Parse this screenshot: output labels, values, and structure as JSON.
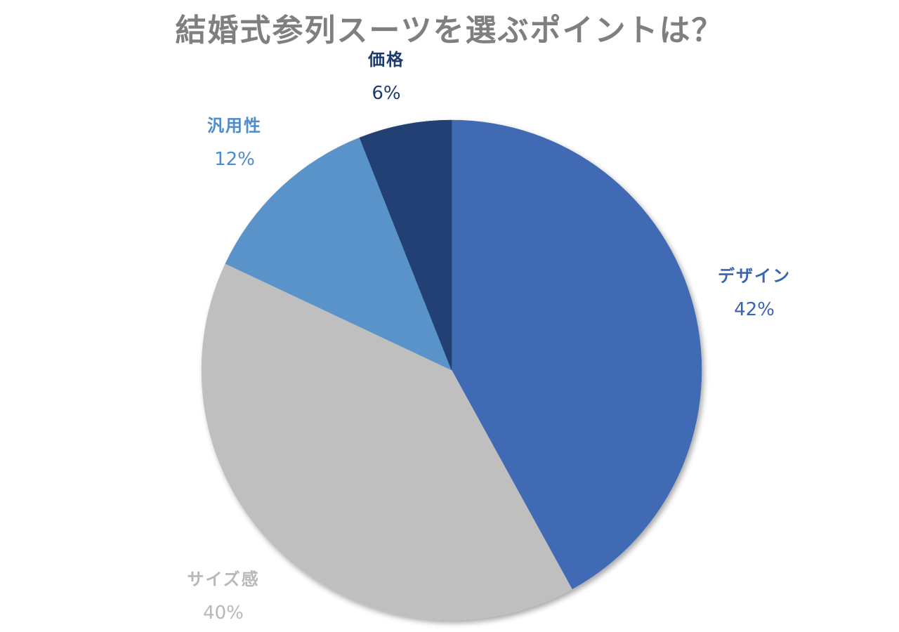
{
  "chart_data": {
    "type": "pie",
    "title": "結婚式参列スーツを選ぶポイントは？",
    "categories": [
      "デザイン",
      "サイズ感",
      "汎用性",
      "価格"
    ],
    "values": [
      42,
      40,
      12,
      6
    ],
    "labels": [
      "42%",
      "40%",
      "12%",
      "6%"
    ],
    "colors": [
      "#416bb3",
      "#bfbfbf",
      "#5a93c9",
      "#234173"
    ],
    "label_colors": [
      "#3b64b0",
      "#b8b8b8",
      "#4f8cc8",
      "#1f3b6e"
    ],
    "start_angle_deg": 0,
    "direction": "clockwise",
    "legend": "none",
    "data_labels": "outside, category name and percentage"
  },
  "title": "結婚式参列スーツを選ぶポイントは？",
  "slices": [
    {
      "name": "デザイン",
      "percent": "42%"
    },
    {
      "name": "サイズ感",
      "percent": "40%"
    },
    {
      "name": "汎用性",
      "percent": "12%"
    },
    {
      "name": "価格",
      "percent": "6%"
    }
  ]
}
